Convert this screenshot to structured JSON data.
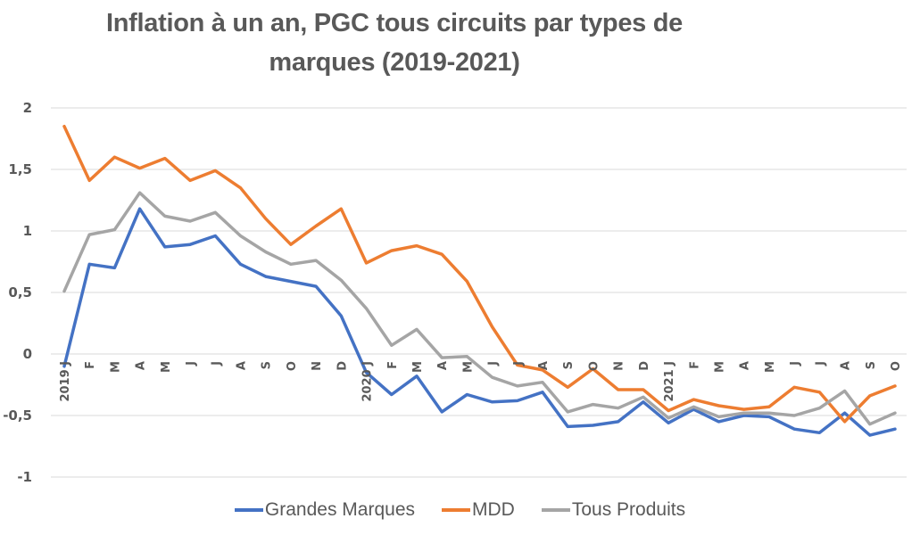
{
  "chart_data": {
    "type": "line",
    "title": "Inflation à un an, PGC tous circuits par types de marques (2019-2021)",
    "title_lines": [
      "Inflation à un an, PGC tous circuits par types de",
      "marques (2019-2021)"
    ],
    "xlabel": "",
    "ylabel": "",
    "ylim": [
      -1,
      2
    ],
    "yticks": [
      2,
      1.5,
      1,
      0.5,
      0,
      -0.5,
      -1
    ],
    "ytick_labels": [
      "2",
      "1,5",
      "1",
      "0,5",
      "0",
      "-0,5",
      "-1"
    ],
    "grid": true,
    "legend_position": "bottom",
    "categories": [
      "2019 J",
      "F",
      "M",
      "A",
      "M",
      "J",
      "J",
      "A",
      "S",
      "O",
      "N",
      "D",
      "2020 J",
      "F",
      "M",
      "A",
      "M",
      "J",
      "J",
      "A",
      "S",
      "O",
      "N",
      "D",
      "2021 J",
      "F",
      "M",
      "A",
      "M",
      "J",
      "J",
      "A",
      "S",
      "O"
    ],
    "series": [
      {
        "name": "Grandes Marques",
        "color": "#4472C4",
        "values": [
          -0.1,
          0.73,
          0.7,
          1.18,
          0.87,
          0.89,
          0.96,
          0.73,
          0.63,
          0.59,
          0.55,
          0.31,
          -0.15,
          -0.33,
          -0.18,
          -0.47,
          -0.33,
          -0.39,
          -0.38,
          -0.31,
          -0.59,
          -0.58,
          -0.55,
          -0.39,
          -0.56,
          -0.45,
          -0.55,
          -0.5,
          -0.51,
          -0.61,
          -0.64,
          -0.48,
          -0.66,
          -0.61
        ]
      },
      {
        "name": "MDD",
        "color": "#ED7D31",
        "values": [
          1.85,
          1.41,
          1.6,
          1.51,
          1.59,
          1.41,
          1.49,
          1.35,
          1.1,
          0.89,
          1.04,
          1.18,
          0.74,
          0.84,
          0.88,
          0.81,
          0.59,
          0.22,
          -0.09,
          -0.13,
          -0.27,
          -0.12,
          -0.29,
          -0.29,
          -0.46,
          -0.37,
          -0.42,
          -0.45,
          -0.43,
          -0.27,
          -0.31,
          -0.55,
          -0.34,
          -0.26
        ]
      },
      {
        "name": "Tous Produits",
        "color": "#A5A5A5",
        "values": [
          0.51,
          0.97,
          1.01,
          1.31,
          1.12,
          1.08,
          1.15,
          0.96,
          0.83,
          0.73,
          0.76,
          0.6,
          0.37,
          0.07,
          0.2,
          -0.03,
          -0.02,
          -0.19,
          -0.26,
          -0.23,
          -0.47,
          -0.41,
          -0.44,
          -0.35,
          -0.52,
          -0.43,
          -0.51,
          -0.48,
          -0.48,
          -0.5,
          -0.44,
          -0.3,
          -0.57,
          -0.48
        ]
      }
    ]
  }
}
